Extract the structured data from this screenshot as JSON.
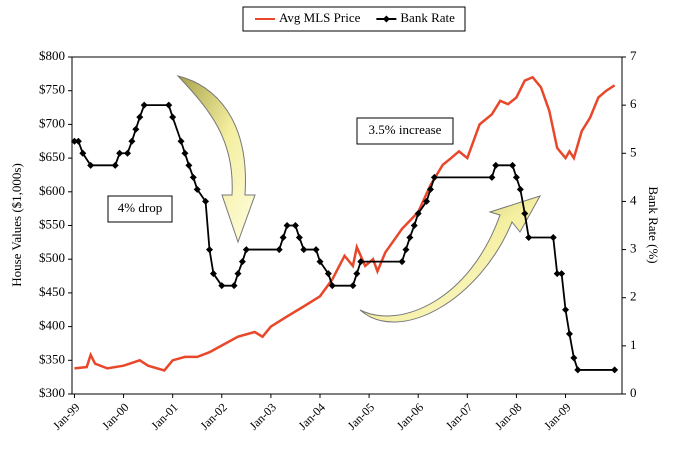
{
  "chart_data": {
    "type": "line",
    "legend": "top",
    "ylabel": "House Values ($1,000s)",
    "y2label": "Bank Rate (%)",
    "annotations": [
      "4% drop",
      "3.5% increase"
    ],
    "xlim": [
      1998.95,
      2010.15
    ],
    "xticks": [
      {
        "value": 1999,
        "label": "Jan-99"
      },
      {
        "value": 2000,
        "label": "Jan-00"
      },
      {
        "value": 2001,
        "label": "Jan-01"
      },
      {
        "value": 2002,
        "label": "Jan-02"
      },
      {
        "value": 2003,
        "label": "Jan-03"
      },
      {
        "value": 2004,
        "label": "Jan-04"
      },
      {
        "value": 2005,
        "label": "Jan-05"
      },
      {
        "value": 2006,
        "label": "Jan-06"
      },
      {
        "value": 2007,
        "label": "Jan-07"
      },
      {
        "value": 2008,
        "label": "Jan-08"
      },
      {
        "value": 2009,
        "label": "Jan-09"
      }
    ],
    "ylim": [
      300,
      800
    ],
    "yticks": [
      {
        "value": 300,
        "label": "$300"
      },
      {
        "value": 350,
        "label": "$350"
      },
      {
        "value": 400,
        "label": "$400"
      },
      {
        "value": 450,
        "label": "$450"
      },
      {
        "value": 500,
        "label": "$500"
      },
      {
        "value": 550,
        "label": "$550"
      },
      {
        "value": 600,
        "label": "$600"
      },
      {
        "value": 650,
        "label": "$650"
      },
      {
        "value": 700,
        "label": "$700"
      },
      {
        "value": 750,
        "label": "$750"
      },
      {
        "value": 800,
        "label": "$800"
      }
    ],
    "y2lim": [
      0,
      7
    ],
    "y2ticks": [
      0,
      1,
      2,
      3,
      4,
      5,
      6,
      7
    ],
    "series": [
      {
        "name": "Avg MLS Price",
        "color": "#e8472a",
        "markers": false,
        "x": [
          1999.0,
          1999.25,
          1999.33,
          1999.42,
          1999.67,
          2000.0,
          2000.33,
          2000.5,
          2000.83,
          2001.0,
          2001.25,
          2001.5,
          2001.75,
          2002.0,
          2002.33,
          2002.67,
          2002.83,
          2003.0,
          2003.33,
          2003.67,
          2004.0,
          2004.25,
          2004.5,
          2004.67,
          2004.75,
          2004.92,
          2005.08,
          2005.17,
          2005.33,
          2005.67,
          2006.0,
          2006.25,
          2006.5,
          2006.67,
          2006.83,
          2007.0,
          2007.25,
          2007.5,
          2007.67,
          2007.83,
          2008.0,
          2008.17,
          2008.33,
          2008.5,
          2008.67,
          2008.83,
          2009.0,
          2009.08,
          2009.17,
          2009.33,
          2009.5,
          2009.67,
          2009.83,
          2010.0
        ],
        "values": [
          338,
          340,
          358,
          345,
          338,
          342,
          350,
          342,
          335,
          350,
          355,
          355,
          362,
          372,
          385,
          392,
          385,
          400,
          415,
          430,
          445,
          470,
          505,
          490,
          518,
          490,
          500,
          482,
          510,
          545,
          570,
          610,
          640,
          650,
          660,
          650,
          700,
          715,
          735,
          730,
          740,
          765,
          770,
          755,
          720,
          665,
          650,
          660,
          650,
          690,
          710,
          740,
          750,
          758
        ]
      },
      {
        "name": "Bank Rate",
        "color": "#000000",
        "axis": "y2",
        "markers": true,
        "x": [
          1999.0,
          1999.08,
          1999.17,
          1999.33,
          1999.83,
          1999.92,
          2000.08,
          2000.17,
          2000.25,
          2000.33,
          2000.42,
          2000.92,
          2001.0,
          2001.17,
          2001.25,
          2001.33,
          2001.42,
          2001.5,
          2001.67,
          2001.75,
          2001.83,
          2002.0,
          2002.25,
          2002.33,
          2002.42,
          2002.5,
          2003.17,
          2003.25,
          2003.33,
          2003.5,
          2003.58,
          2003.67,
          2003.92,
          2004.0,
          2004.17,
          2004.25,
          2004.67,
          2004.75,
          2004.83,
          2005.67,
          2005.75,
          2005.83,
          2005.92,
          2006.0,
          2006.17,
          2006.25,
          2006.33,
          2007.5,
          2007.58,
          2007.92,
          2008.0,
          2008.08,
          2008.17,
          2008.25,
          2008.75,
          2008.83,
          2008.92,
          2009.0,
          2009.08,
          2009.17,
          2009.25,
          2010.0
        ],
        "values": [
          5.25,
          5.25,
          5.0,
          4.75,
          4.75,
          5.0,
          5.0,
          5.25,
          5.5,
          5.75,
          6.0,
          6.0,
          5.75,
          5.25,
          5.0,
          4.75,
          4.5,
          4.25,
          4.0,
          3.0,
          2.5,
          2.25,
          2.25,
          2.5,
          2.75,
          3.0,
          3.0,
          3.25,
          3.5,
          3.5,
          3.25,
          3.0,
          3.0,
          2.75,
          2.5,
          2.25,
          2.25,
          2.5,
          2.75,
          2.75,
          3.0,
          3.25,
          3.5,
          3.75,
          4.0,
          4.25,
          4.5,
          4.5,
          4.75,
          4.75,
          4.5,
          4.25,
          3.75,
          3.25,
          3.25,
          2.5,
          2.5,
          1.75,
          1.25,
          0.75,
          0.5,
          0.5
        ]
      }
    ]
  }
}
